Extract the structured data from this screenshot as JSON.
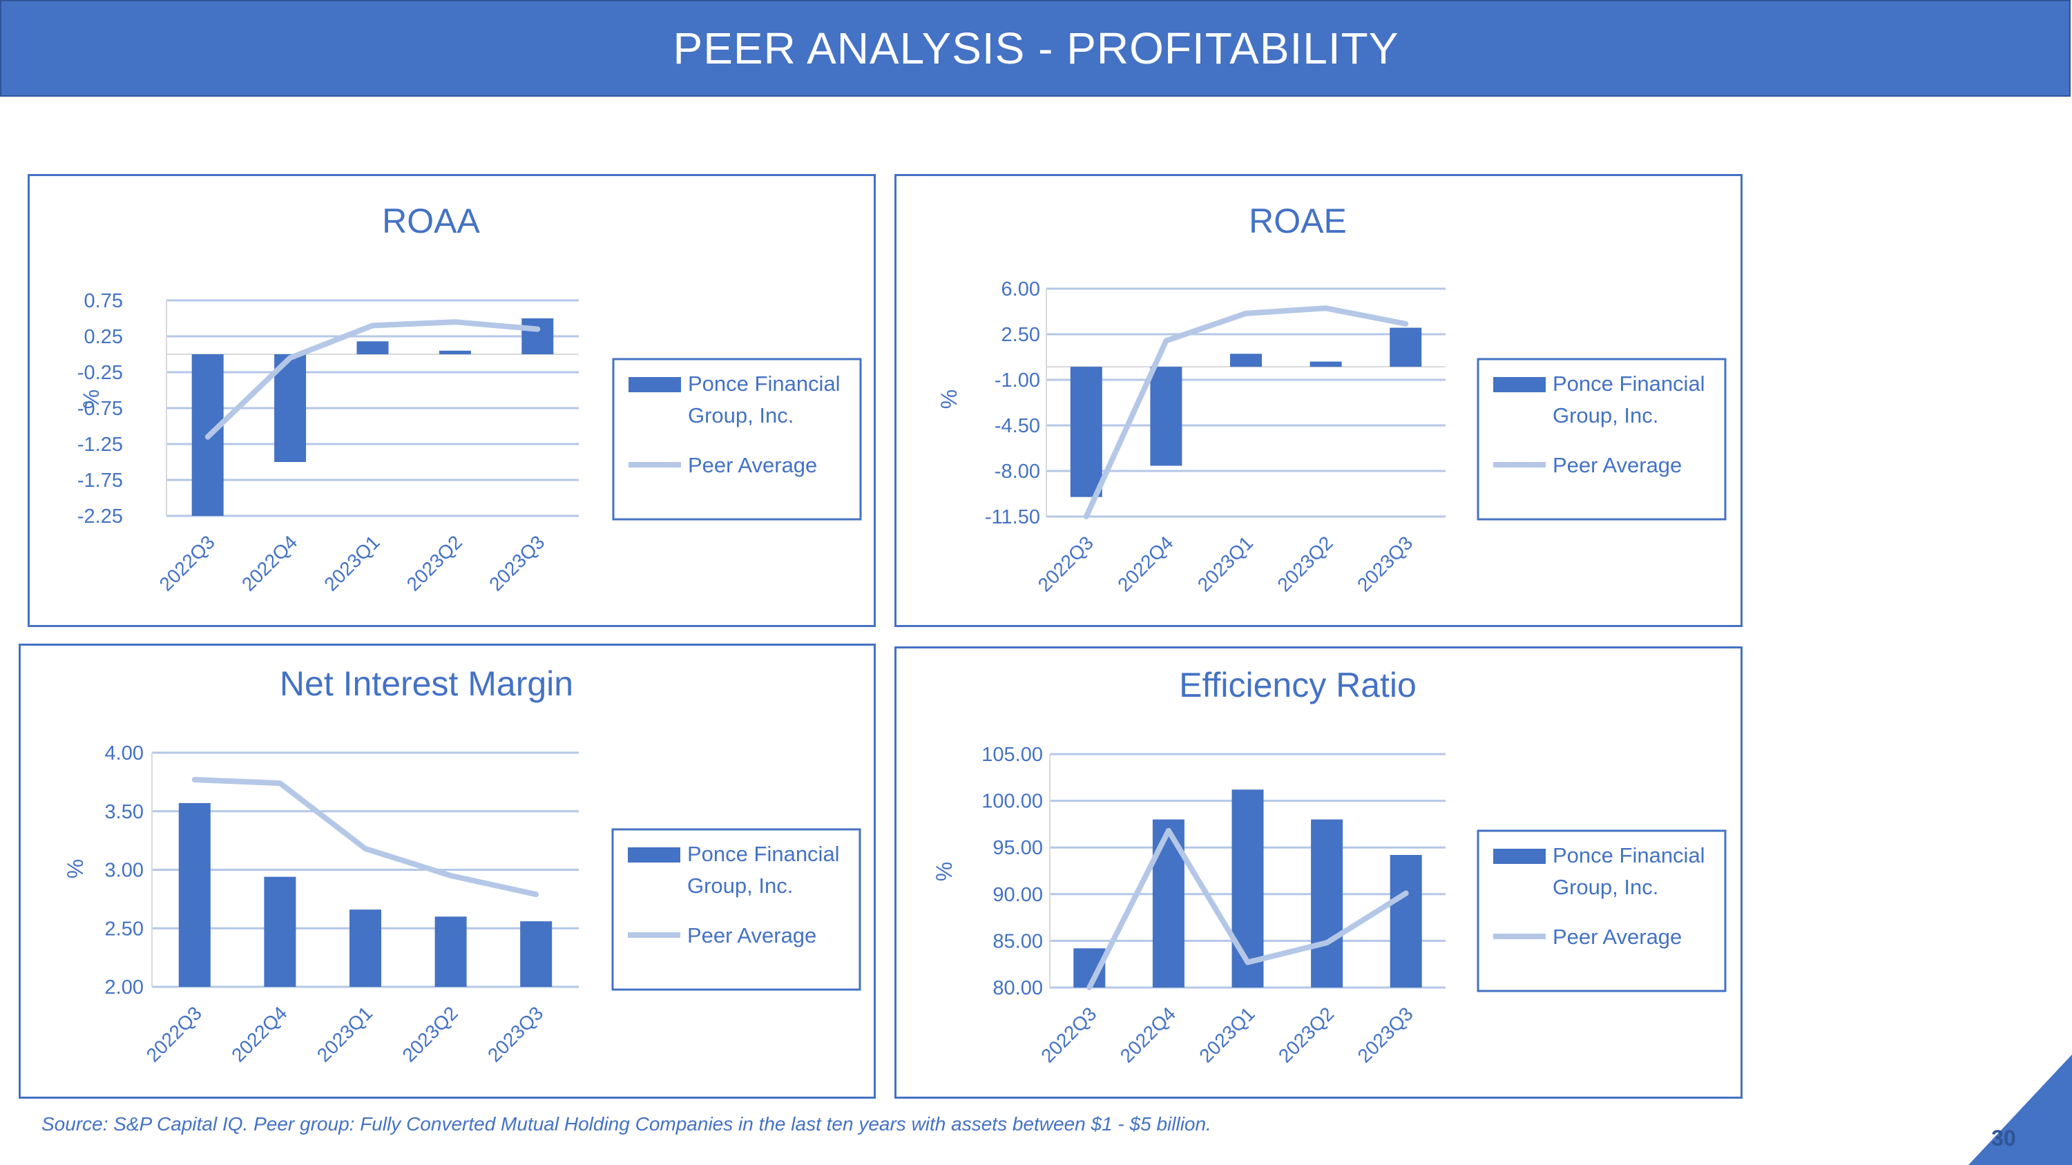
{
  "header": {
    "title": "PEER ANALYSIS - PROFITABILITY"
  },
  "colors": {
    "header": "#4472C4",
    "bar": "#4472C4",
    "line": "#B4C7E7",
    "text": "#4472C4",
    "grid": "#B4C7E7"
  },
  "chart_data": [
    {
      "type": "bar",
      "title": "ROAA",
      "ylabel": "%",
      "categories": [
        "2022Q3",
        "2022Q4",
        "2023Q1",
        "2023Q2",
        "2023Q3"
      ],
      "yticks": [
        "0.75",
        "0.25",
        "-0.25",
        "-0.75",
        "-1.25",
        "-1.75",
        "-2.25"
      ],
      "ylim": [
        -2.25,
        0.75
      ],
      "series": [
        {
          "name": "Ponce Financial Group, Inc.",
          "type": "bar",
          "values": [
            -2.25,
            -1.5,
            0.18,
            0.05,
            0.5
          ]
        },
        {
          "name": "Peer Average",
          "type": "line",
          "values": [
            -1.15,
            -0.05,
            0.4,
            0.45,
            0.35
          ]
        }
      ]
    },
    {
      "type": "bar",
      "title": "ROAE",
      "ylabel": "%",
      "categories": [
        "2022Q3",
        "2022Q4",
        "2023Q1",
        "2023Q2",
        "2023Q3"
      ],
      "yticks": [
        "6.00",
        "2.50",
        "-1.00",
        "-4.50",
        "-8.00",
        "-11.50"
      ],
      "ylim": [
        -11.5,
        6.0
      ],
      "series": [
        {
          "name": "Ponce Financial Group, Inc.",
          "type": "bar",
          "values": [
            -10.0,
            -7.6,
            1.0,
            0.4,
            3.0
          ]
        },
        {
          "name": "Peer Average",
          "type": "line",
          "values": [
            -11.5,
            2.0,
            4.1,
            4.5,
            3.3
          ]
        }
      ]
    },
    {
      "type": "bar",
      "title": "Net Interest Margin",
      "ylabel": "%",
      "categories": [
        "2022Q3",
        "2022Q4",
        "2023Q1",
        "2023Q2",
        "2023Q3"
      ],
      "yticks": [
        "4.00",
        "3.50",
        "3.00",
        "2.50",
        "2.00"
      ],
      "ylim": [
        2.0,
        4.0
      ],
      "series": [
        {
          "name": "Ponce Financial Group, Inc.",
          "type": "bar",
          "values": [
            3.57,
            2.94,
            2.66,
            2.6,
            2.56
          ]
        },
        {
          "name": "Peer Average",
          "type": "line",
          "values": [
            3.77,
            3.74,
            3.18,
            2.95,
            2.79
          ]
        }
      ]
    },
    {
      "type": "bar",
      "title": "Efficiency Ratio",
      "ylabel": "%",
      "categories": [
        "2022Q3",
        "2022Q4",
        "2023Q1",
        "2023Q2",
        "2023Q3"
      ],
      "yticks": [
        "105.00",
        "100.00",
        "95.00",
        "90.00",
        "85.00",
        "80.00"
      ],
      "ylim": [
        80.0,
        105.0
      ],
      "series": [
        {
          "name": "Ponce Financial Group, Inc.",
          "type": "bar",
          "values": [
            84.2,
            98.0,
            101.2,
            98.0,
            94.2
          ]
        },
        {
          "name": "Peer Average",
          "type": "line",
          "values": [
            80.0,
            96.8,
            82.7,
            84.8,
            90.1
          ]
        }
      ]
    }
  ],
  "footer": {
    "source": "Source: S&P Capital IQ. Peer group: Fully Converted Mutual Holding Companies in the last ten years with assets between $1 - $5 billion.",
    "page_number": "30"
  }
}
